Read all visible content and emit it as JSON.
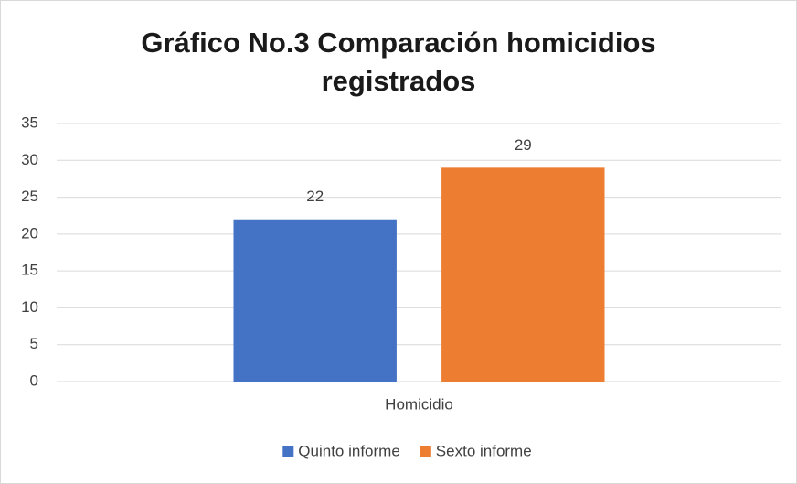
{
  "chart_data": {
    "type": "bar",
    "title": "Gráfico No.3 Comparación homicidios registrados",
    "categories": [
      "Homicidio"
    ],
    "series": [
      {
        "name": "Quinto informe",
        "color": "#4472c4",
        "values": [
          22
        ]
      },
      {
        "name": "Sexto informe",
        "color": "#ed7d31",
        "values": [
          29
        ]
      }
    ],
    "ylim": [
      0,
      35
    ],
    "yticks": [
      0,
      5,
      10,
      15,
      20,
      25,
      30,
      35
    ],
    "grid": true,
    "legend": "bottom"
  }
}
